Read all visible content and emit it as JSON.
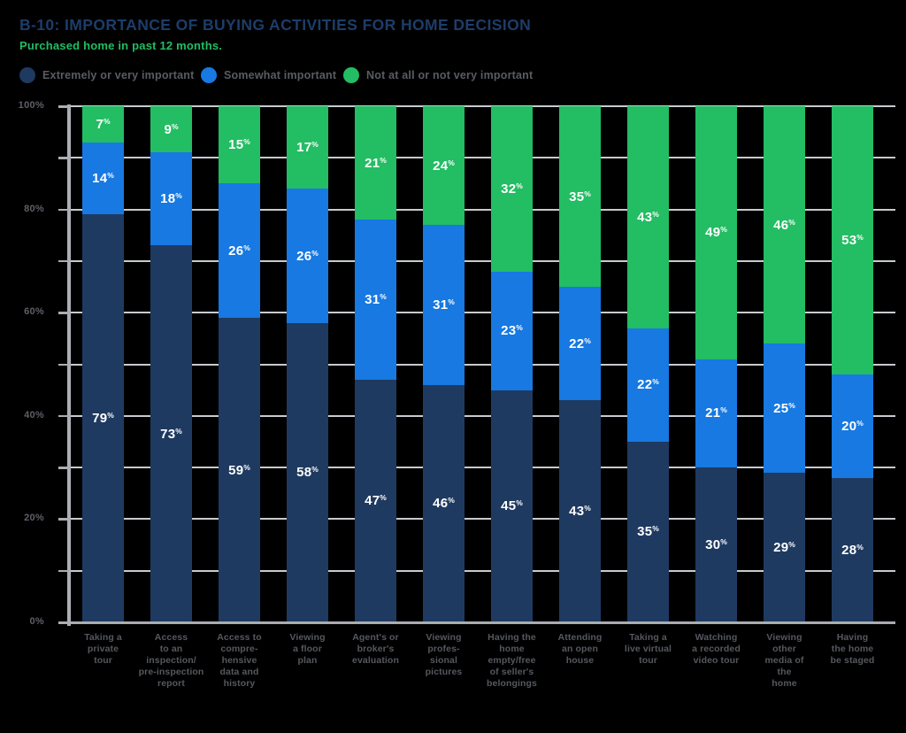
{
  "header": {
    "title": "B-10: IMPORTANCE OF BUYING ACTIVITIES FOR HOME DECISION",
    "subtitle": "Purchased home in past 12 months."
  },
  "colors": {
    "title": "#1d3d69",
    "subtitle_green": "#21bd62",
    "navy": "#1f3a60",
    "blue": "#1779e1",
    "green": "#23bd63",
    "gridline": "#c7cbcf",
    "axis": "#abafb4",
    "label_gray": "#55585e"
  },
  "chart_data": {
    "type": "bar",
    "stacked": true,
    "title": "B-10: IMPORTANCE OF BUYING ACTIVITIES FOR HOME DECISION",
    "subtitle": "Purchased home in past 12 months.",
    "categories": [
      "Taking a\nprivate\ntour",
      "Access\nto an\ninspection/\npre-inspection\nreport",
      "Access to\ncompre-\nhensive\ndata and\nhistory",
      "Viewing\na floor\nplan",
      "Agent's or\nbroker's\nevaluation",
      "Viewing\nprofes-\nsional\npictures",
      "Having the\nhome\nempty/free\nof seller's\nbelongings",
      "Attending\nan open\nhouse",
      "Taking a\nlive virtual\ntour",
      "Watching\na recorded\nvideo tour",
      "Viewing\nother\nmedia of\nthe\nhome",
      "Having\nthe home\nbe staged"
    ],
    "series": [
      {
        "name": "Extremely or very important",
        "color": "#1f3a60",
        "values": [
          79,
          73,
          59,
          58,
          47,
          46,
          45,
          43,
          35,
          30,
          29,
          28
        ]
      },
      {
        "name": "Somewhat important",
        "color": "#1779e1",
        "values": [
          14,
          18,
          26,
          26,
          31,
          31,
          23,
          22,
          22,
          21,
          25,
          20
        ]
      },
      {
        "name": "Not at all or not very important",
        "color": "#23bd63",
        "values": [
          7,
          9,
          15,
          17,
          21,
          24,
          32,
          35,
          43,
          49,
          46,
          53
        ]
      }
    ],
    "value_suffix": "%",
    "ylim": [
      0,
      100
    ],
    "ytick_labels": [
      "0%",
      "20%",
      "40%",
      "60%",
      "80%",
      "100%"
    ],
    "grid": true,
    "grid_step_pct": 10,
    "legend_position": "top"
  }
}
